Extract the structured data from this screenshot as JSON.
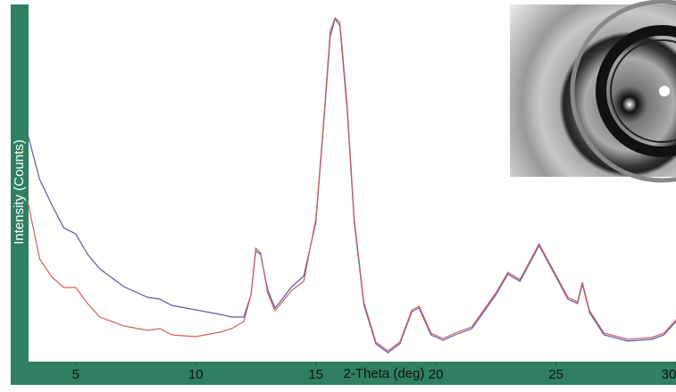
{
  "chart_data": {
    "type": "line",
    "x_label": "2-Theta (deg)",
    "y_label": "Intensity (Counts)",
    "xlim": [
      3,
      30
    ],
    "ylim": [
      0,
      100
    ],
    "xticks": [
      5,
      10,
      15,
      20,
      25,
      30
    ],
    "series": [
      {
        "color": "#5a5aa8",
        "x": [
          3,
          3.5,
          4,
          4.5,
          5,
          5.5,
          6,
          7,
          8,
          8.5,
          9,
          10,
          11,
          11.5,
          12,
          12.3,
          12.5,
          12.7,
          13,
          13.3,
          13.6,
          14,
          14.5,
          15,
          15.3,
          15.6,
          15.8,
          16,
          16.3,
          16.6,
          17,
          17.5,
          18,
          18.5,
          19,
          19.3,
          19.8,
          20.3,
          20.8,
          21.5,
          22.5,
          23,
          23.5,
          24,
          24.3,
          24.8,
          25.5,
          25.9,
          26.1,
          26.4,
          27,
          28,
          29,
          29.5,
          30
        ],
        "values": [
          63.75,
          51,
          44,
          37.5,
          35.75,
          30,
          26,
          21,
          18,
          17.5,
          15.75,
          14.5,
          13.25,
          12.5,
          12.5,
          18.75,
          31,
          30,
          20,
          15,
          17.5,
          21,
          24,
          39,
          64,
          91,
          96,
          94,
          71,
          39,
          16,
          5,
          2.5,
          5,
          14,
          15,
          7.5,
          6,
          7.5,
          9.25,
          18.75,
          24.5,
          22.5,
          28.75,
          32.5,
          26.25,
          17.5,
          16.25,
          21.75,
          13.75,
          7.5,
          5.75,
          6.25,
          7.5,
          11.25
        ]
      },
      {
        "color": "#d06060",
        "x": [
          3,
          3.5,
          4,
          4.5,
          5,
          5.5,
          6,
          7,
          8,
          8.5,
          9,
          10,
          11,
          11.5,
          12,
          12.3,
          12.5,
          12.7,
          13,
          13.3,
          14,
          14.5,
          15,
          15.3,
          15.6,
          15.8,
          16,
          16.3,
          16.6,
          17,
          17.5,
          18,
          18.5,
          19,
          19.3,
          19.8,
          20.3,
          20.8,
          21.5,
          22.5,
          23,
          23.5,
          24,
          24.3,
          24.8,
          25.5,
          25.9,
          26.1,
          26.4,
          27,
          28,
          29,
          29.5,
          30
        ],
        "values": [
          45,
          28.75,
          23.75,
          20.75,
          20.75,
          16.25,
          12.5,
          10,
          8.75,
          9.25,
          7.5,
          7,
          8.25,
          9.25,
          11.25,
          18.75,
          31.75,
          30.5,
          19,
          14.25,
          20,
          22.5,
          40,
          65,
          92.5,
          96.25,
          95,
          72.5,
          40,
          16.75,
          5.5,
          3,
          5.5,
          14.5,
          15.5,
          8,
          6.5,
          8,
          9.75,
          19.25,
          25,
          23,
          29.25,
          33,
          26.75,
          18,
          16.75,
          22.25,
          14.25,
          8,
          6.25,
          6.75,
          8,
          11.75
        ]
      }
    ]
  }
}
